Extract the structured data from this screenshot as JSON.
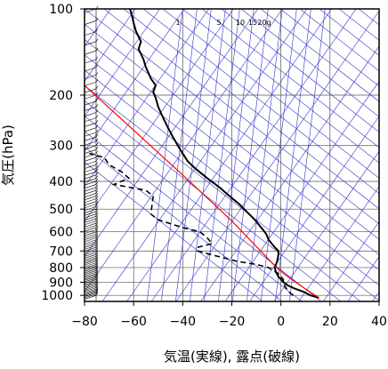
{
  "chart_data": {
    "type": "line",
    "title": "",
    "xlabel": "気温(実線), 露点(破線)",
    "ylabel": "気圧(hPa)",
    "x_scale": "linear",
    "y_scale": "log",
    "xlim": [
      -80,
      40
    ],
    "ylim": [
      1050,
      100
    ],
    "x_ticks": [
      -80,
      -60,
      -40,
      -20,
      0,
      20,
      40
    ],
    "y_ticks": [
      100,
      200,
      300,
      400,
      500,
      600,
      700,
      800,
      900,
      1000
    ],
    "mixing_ratio_labels": [
      "1",
      "5",
      "10",
      "15",
      "20g"
    ],
    "grid": true,
    "colors": {
      "temperature": "#000000",
      "dewpoint": "#000000",
      "parcel": "#ff0000",
      "isotherm_dry_adiabat": "#3333cc",
      "grid": "#555555",
      "wind_barbs": "#000000"
    },
    "series": [
      {
        "style": "solid",
        "points": [
          [
            15.5,
            1020
          ],
          [
            12.0,
            1000
          ],
          [
            9.0,
            970
          ],
          [
            6.0,
            950
          ],
          [
            3.0,
            925
          ],
          [
            1.0,
            900
          ],
          [
            -1.0,
            860
          ],
          [
            -2.0,
            830
          ],
          [
            -2.5,
            800
          ],
          [
            -1.5,
            760
          ],
          [
            -1.0,
            720
          ],
          [
            -1.0,
            700
          ],
          [
            -2.5,
            680
          ],
          [
            -5.0,
            640
          ],
          [
            -6.0,
            610
          ],
          [
            -8.0,
            580
          ],
          [
            -11.0,
            540
          ],
          [
            -14.0,
            510
          ],
          [
            -17.0,
            480
          ],
          [
            -21.0,
            450
          ],
          [
            -25.0,
            420
          ],
          [
            -30.0,
            390
          ],
          [
            -35.0,
            360
          ],
          [
            -38.0,
            340
          ],
          [
            -41.0,
            310
          ],
          [
            -44.0,
            280
          ],
          [
            -46.0,
            260
          ],
          [
            -48.0,
            240
          ],
          [
            -50.0,
            220
          ],
          [
            -51.0,
            205
          ],
          [
            -52.0,
            195
          ],
          [
            -51.0,
            185
          ],
          [
            -53.0,
            175
          ],
          [
            -55.0,
            160
          ],
          [
            -56.0,
            150
          ],
          [
            -58.0,
            138
          ],
          [
            -57.0,
            130
          ],
          [
            -59.0,
            120
          ],
          [
            -60.0,
            112
          ],
          [
            -61.0,
            103
          ],
          [
            -61.5,
            100
          ]
        ]
      },
      {
        "style": "dashed",
        "points": [
          [
            5.0,
            1000
          ],
          [
            3.0,
            970
          ],
          [
            2.0,
            940
          ],
          [
            1.0,
            910
          ],
          [
            1.0,
            880
          ],
          [
            -1.0,
            840
          ],
          [
            -5.0,
            800
          ],
          [
            -10.0,
            780
          ],
          [
            -18.0,
            760
          ],
          [
            -26.0,
            730
          ],
          [
            -34.0,
            700
          ],
          [
            -34.0,
            680
          ],
          [
            -28.0,
            660
          ],
          [
            -30.0,
            630
          ],
          [
            -33.0,
            600
          ],
          [
            -40.0,
            580
          ],
          [
            -50.0,
            545
          ],
          [
            -53.0,
            520
          ],
          [
            -52.0,
            450
          ],
          [
            -55.0,
            430
          ],
          [
            -68.0,
            410
          ],
          [
            -62.0,
            390
          ],
          [
            -65.0,
            370
          ],
          [
            -70.0,
            350
          ],
          [
            -72.0,
            330
          ],
          [
            -78.0,
            320
          ]
        ]
      },
      {
        "style": "solid",
        "points": [
          [
            15.5,
            1020
          ],
          [
            10.0,
            950
          ],
          [
            6.0,
            900
          ],
          [
            2.0,
            850
          ],
          [
            -1.0,
            810
          ],
          [
            -3.0,
            780
          ],
          [
            -20.0,
            550
          ],
          [
            -40.0,
            380
          ],
          [
            -60.0,
            265
          ],
          [
            -80.0,
            185
          ]
        ]
      }
    ]
  }
}
